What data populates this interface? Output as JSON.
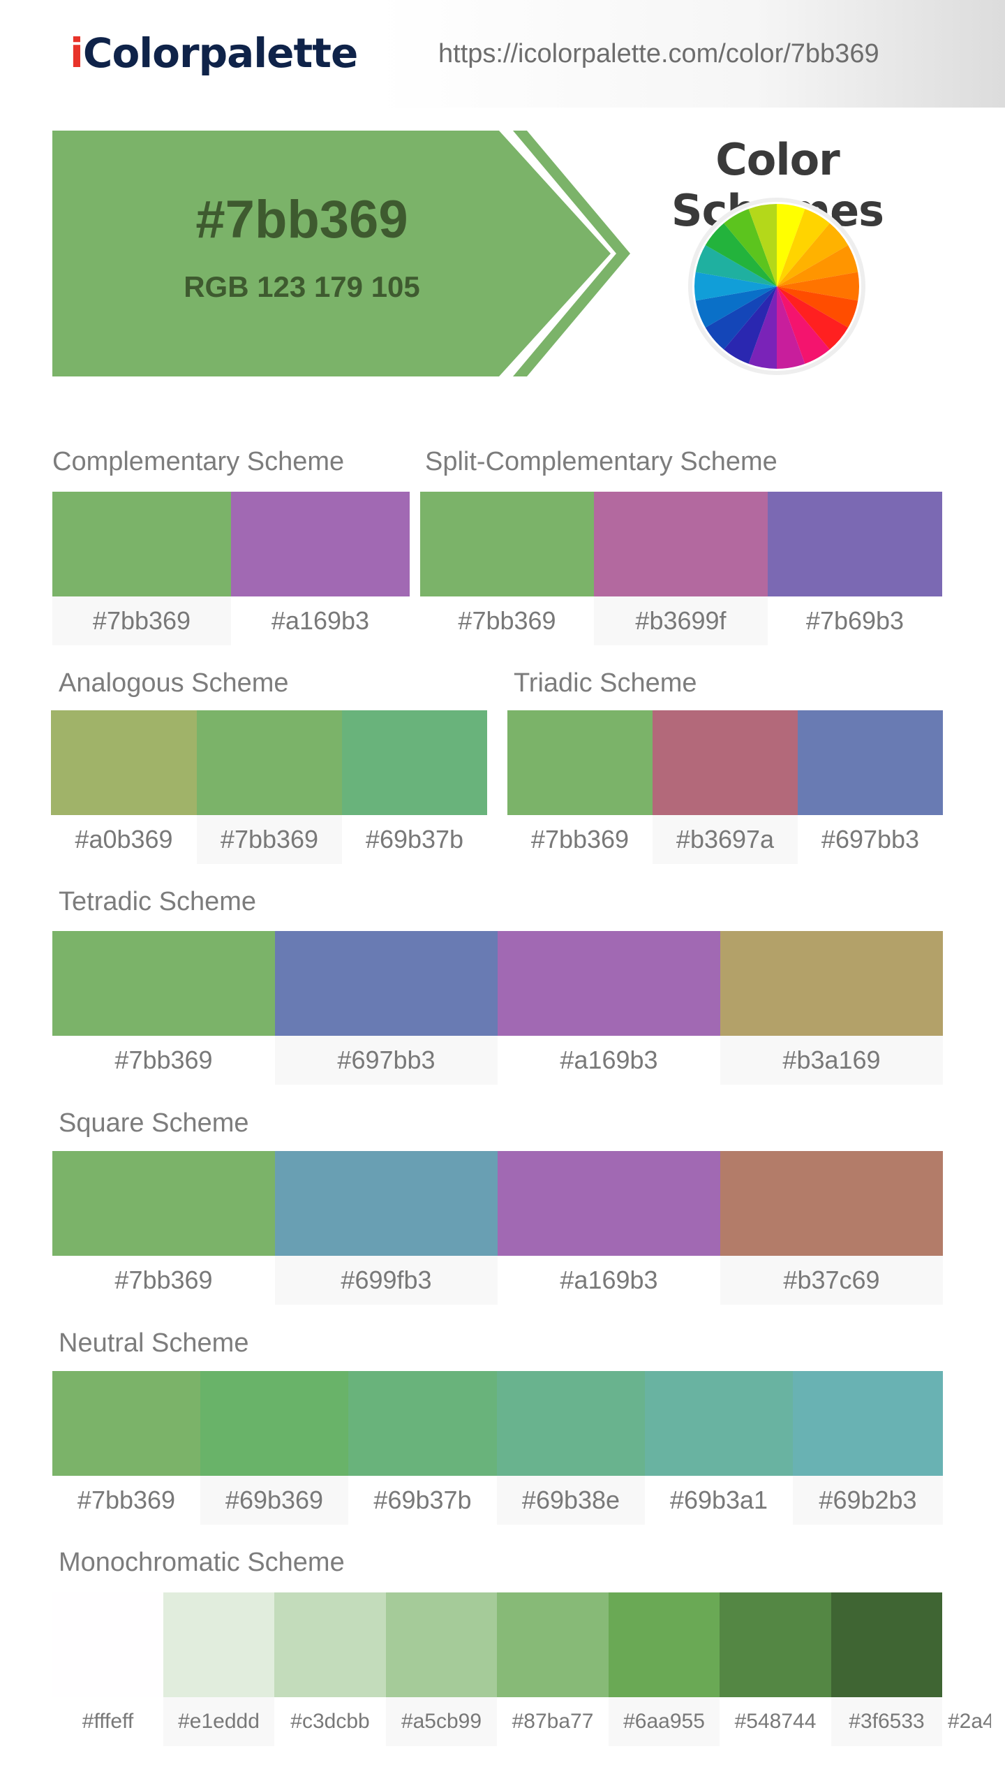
{
  "header": {
    "logo_i": "i",
    "logo_rest": "Colorpalette",
    "url": "https://icolorpalette.com/color/7bb369"
  },
  "hero": {
    "hex": "#7bb369",
    "rgb": "RGB 123 179 105",
    "color": "#7bb369"
  },
  "color_schemes_title": "Color Schemes",
  "schemes": {
    "complementary": {
      "title": "Complementary Scheme",
      "colors": [
        {
          "hex": "#7bb369",
          "label": "#7bb369"
        },
        {
          "hex": "#a169b3",
          "label": "#a169b3"
        }
      ]
    },
    "split": {
      "title": "Split-Complementary Scheme",
      "colors": [
        {
          "hex": "#7bb369",
          "label": "#7bb369"
        },
        {
          "hex": "#b3699f",
          "label": "#b3699f"
        },
        {
          "hex": "#7b69b3",
          "label": "#7b69b3"
        }
      ]
    },
    "analogous": {
      "title": "Analogous Scheme",
      "colors": [
        {
          "hex": "#a0b369",
          "label": "#a0b369"
        },
        {
          "hex": "#7bb369",
          "label": "#7bb369"
        },
        {
          "hex": "#69b37b",
          "label": "#69b37b"
        }
      ]
    },
    "triadic": {
      "title": "Triadic Scheme",
      "colors": [
        {
          "hex": "#7bb369",
          "label": "#7bb369"
        },
        {
          "hex": "#b3697a",
          "label": "#b3697a"
        },
        {
          "hex": "#697bb3",
          "label": "#697bb3"
        }
      ]
    },
    "tetradic": {
      "title": "Tetradic Scheme",
      "colors": [
        {
          "hex": "#7bb369",
          "label": "#7bb369"
        },
        {
          "hex": "#697bb3",
          "label": "#697bb3"
        },
        {
          "hex": "#a169b3",
          "label": "#a169b3"
        },
        {
          "hex": "#b3a169",
          "label": "#b3a169"
        }
      ]
    },
    "square": {
      "title": "Square Scheme",
      "colors": [
        {
          "hex": "#7bb369",
          "label": "#7bb369"
        },
        {
          "hex": "#699fb3",
          "label": "#699fb3"
        },
        {
          "hex": "#a169b3",
          "label": "#a169b3"
        },
        {
          "hex": "#b37c69",
          "label": "#b37c69"
        }
      ]
    },
    "neutral": {
      "title": "Neutral Scheme",
      "colors": [
        {
          "hex": "#7bb369",
          "label": "#7bb369"
        },
        {
          "hex": "#69b369",
          "label": "#69b369"
        },
        {
          "hex": "#69b37b",
          "label": "#69b37b"
        },
        {
          "hex": "#69b38e",
          "label": "#69b38e"
        },
        {
          "hex": "#69b3a1",
          "label": "#69b3a1"
        },
        {
          "hex": "#69b2b3",
          "label": "#69b2b3"
        }
      ]
    },
    "monochromatic": {
      "title": "Monochromatic Scheme",
      "colors": [
        {
          "hex": "#fffeff",
          "label": "#fffeff"
        },
        {
          "hex": "#e1eddd",
          "label": "#e1eddd"
        },
        {
          "hex": "#c3dcbb",
          "label": "#c3dcbb"
        },
        {
          "hex": "#a5cb99",
          "label": "#a5cb99"
        },
        {
          "hex": "#87ba77",
          "label": "#87ba77"
        },
        {
          "hex": "#6aa955",
          "label": "#6aa955"
        },
        {
          "hex": "#548744",
          "label": "#548744"
        },
        {
          "hex": "#3f6533",
          "label": "#3f6533"
        },
        {
          "label": "#2a4"
        }
      ]
    }
  }
}
